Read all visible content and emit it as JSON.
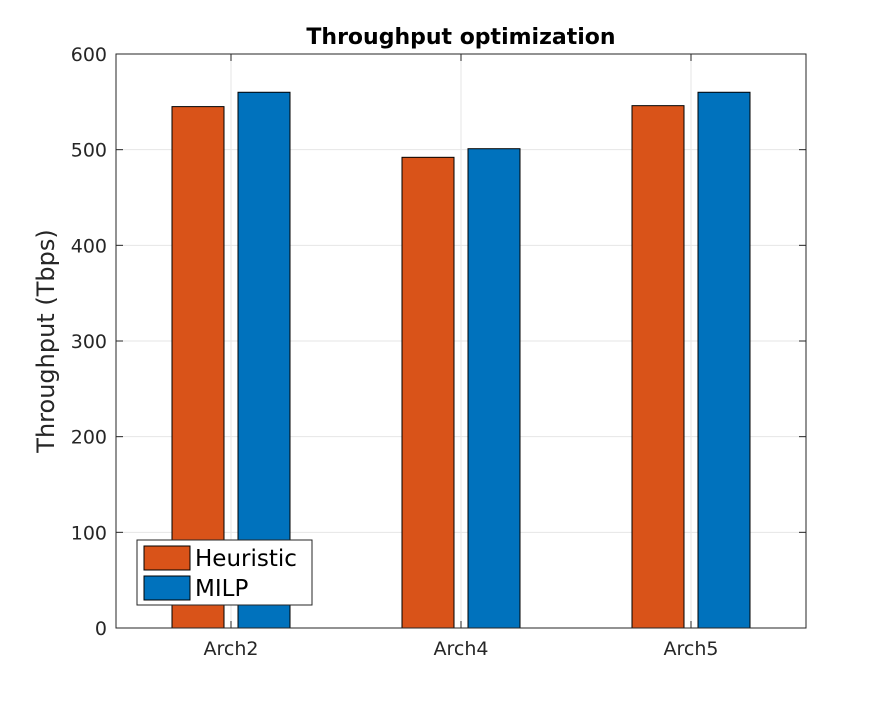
{
  "chart_data": {
    "type": "bar",
    "title": "Throughput optimization",
    "xlabel": "",
    "ylabel": "Throughput (Tbps)",
    "categories": [
      "Arch2",
      "Arch4",
      "Arch5"
    ],
    "series": [
      {
        "name": "Heuristic",
        "values": [
          545,
          492,
          546
        ],
        "color": "#D95319"
      },
      {
        "name": "MILP",
        "values": [
          560,
          501,
          560
        ],
        "color": "#0072BD"
      }
    ],
    "ylim": [
      0,
      600
    ],
    "yticks": [
      0,
      100,
      200,
      300,
      400,
      500,
      600
    ],
    "grid": true,
    "legend_position": "bottom-left"
  }
}
